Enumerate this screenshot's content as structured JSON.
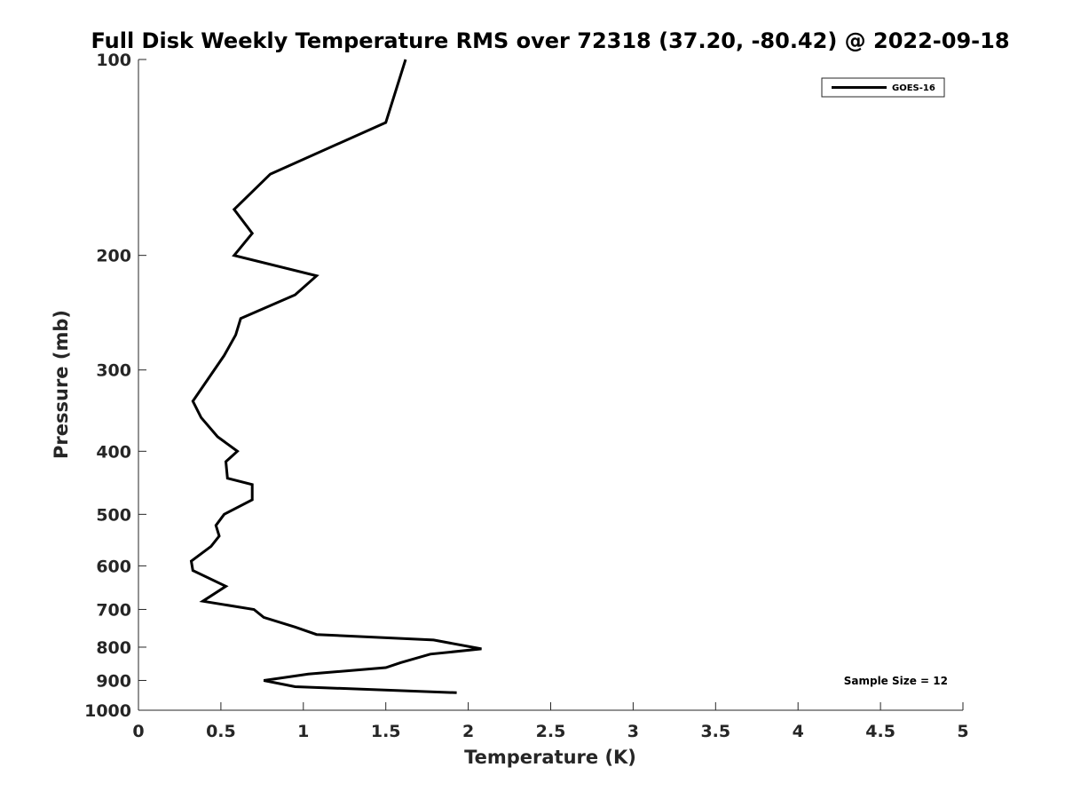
{
  "chart_data": {
    "type": "line",
    "title": "Full Disk Weekly Temperature RMS over 72318 (37.20, -80.42) @ 2022-09-18",
    "xlabel": "Temperature (K)",
    "ylabel": "Pressure (mb)",
    "xlim": [
      0,
      5
    ],
    "ylim": [
      100,
      1000
    ],
    "y_scale": "log",
    "y_reversed": true,
    "x_ticks": [
      "0",
      "0.5",
      "1",
      "1.5",
      "2",
      "2.5",
      "3",
      "3.5",
      "4",
      "4.5",
      "5"
    ],
    "y_ticks": [
      "100",
      "200",
      "300",
      "400",
      "500",
      "600",
      "700",
      "800",
      "900",
      "1000"
    ],
    "grid": false,
    "legend_position": "top-right",
    "annotation": "Sample Size = 12",
    "series": [
      {
        "name": "GOES-16",
        "color": "#000000",
        "points": [
          {
            "x": 1.62,
            "y": 100
          },
          {
            "x": 1.5,
            "y": 125
          },
          {
            "x": 0.8,
            "y": 150
          },
          {
            "x": 0.58,
            "y": 170
          },
          {
            "x": 0.69,
            "y": 185
          },
          {
            "x": 0.58,
            "y": 200
          },
          {
            "x": 1.08,
            "y": 215
          },
          {
            "x": 0.95,
            "y": 230
          },
          {
            "x": 0.62,
            "y": 250
          },
          {
            "x": 0.59,
            "y": 265
          },
          {
            "x": 0.52,
            "y": 285
          },
          {
            "x": 0.33,
            "y": 335
          },
          {
            "x": 0.38,
            "y": 355
          },
          {
            "x": 0.48,
            "y": 380
          },
          {
            "x": 0.6,
            "y": 400
          },
          {
            "x": 0.53,
            "y": 415
          },
          {
            "x": 0.54,
            "y": 440
          },
          {
            "x": 0.69,
            "y": 450
          },
          {
            "x": 0.69,
            "y": 475
          },
          {
            "x": 0.52,
            "y": 500
          },
          {
            "x": 0.47,
            "y": 520
          },
          {
            "x": 0.49,
            "y": 540
          },
          {
            "x": 0.44,
            "y": 560
          },
          {
            "x": 0.32,
            "y": 590
          },
          {
            "x": 0.33,
            "y": 610
          },
          {
            "x": 0.53,
            "y": 645
          },
          {
            "x": 0.39,
            "y": 680
          },
          {
            "x": 0.7,
            "y": 700
          },
          {
            "x": 0.76,
            "y": 720
          },
          {
            "x": 0.95,
            "y": 745
          },
          {
            "x": 1.08,
            "y": 765
          },
          {
            "x": 1.79,
            "y": 780
          },
          {
            "x": 2.08,
            "y": 805
          },
          {
            "x": 1.77,
            "y": 820
          },
          {
            "x": 1.59,
            "y": 845
          },
          {
            "x": 1.5,
            "y": 860
          },
          {
            "x": 1.03,
            "y": 880
          },
          {
            "x": 0.76,
            "y": 900
          },
          {
            "x": 0.95,
            "y": 920
          },
          {
            "x": 1.93,
            "y": 940
          }
        ]
      }
    ]
  }
}
